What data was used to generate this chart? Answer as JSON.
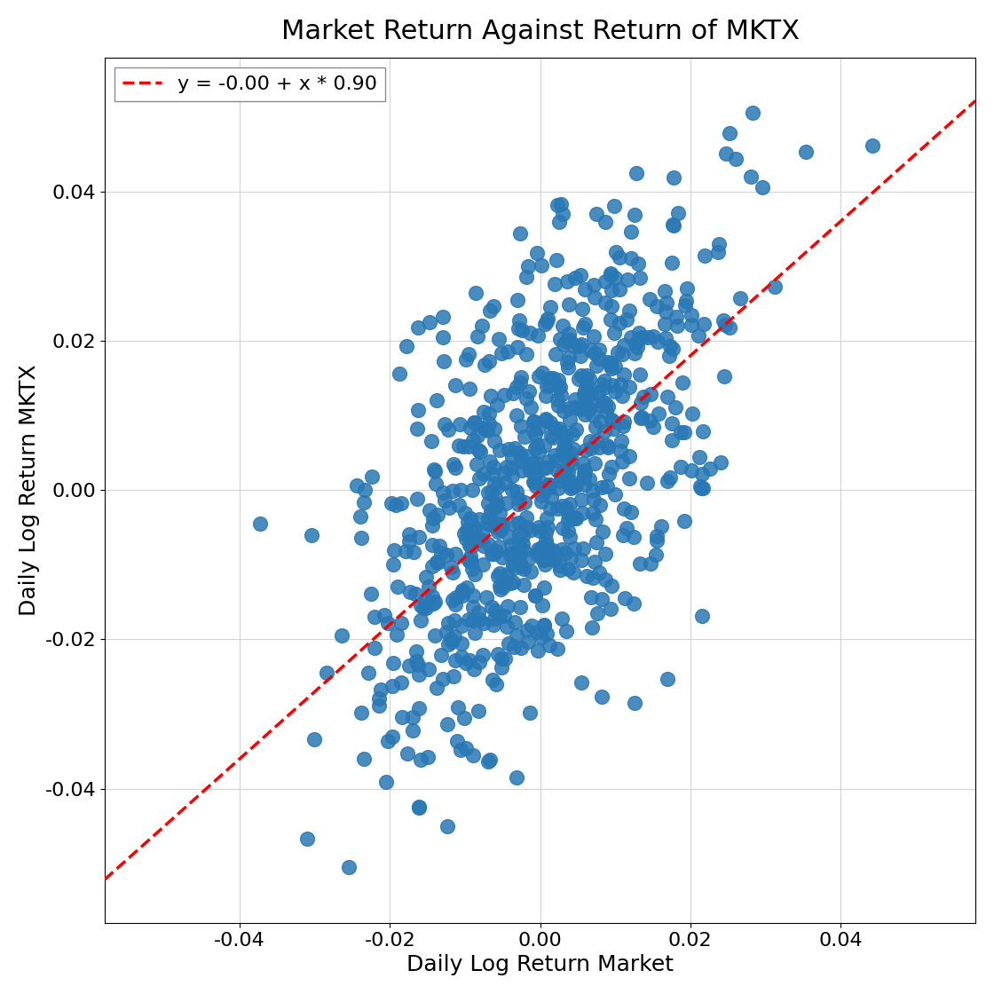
{
  "title": "Market Return Against Return of MKTX",
  "xlabel": "Daily Log Return Market",
  "ylabel": "Daily Log Return MKTX",
  "slope": 0.9,
  "intercept": -0.0,
  "legend_label": "y = -0.00 + x * 0.90",
  "dot_color": "#2878b5",
  "line_color": "red",
  "dot_size": 130,
  "dot_alpha": 0.85,
  "xlim": [
    -0.058,
    0.058
  ],
  "ylim": [
    -0.058,
    0.058
  ],
  "xticks": [
    -0.04,
    -0.02,
    0.0,
    0.02,
    0.04
  ],
  "yticks": [
    -0.04,
    -0.02,
    0.0,
    0.02,
    0.04
  ],
  "n_points": 750,
  "market_std": 0.0115,
  "idio_std": 0.014,
  "random_seed": 42,
  "title_fontsize": 22,
  "label_fontsize": 18,
  "tick_fontsize": 16,
  "legend_fontsize": 16,
  "figwidth": 11.2,
  "figheight": 11.2,
  "dpi": 100
}
